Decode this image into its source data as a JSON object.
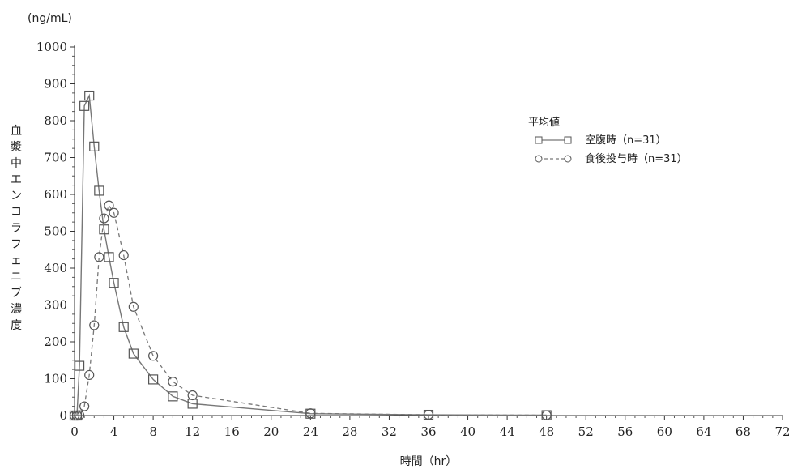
{
  "chart_data": {
    "type": "line",
    "unit_label": "(ng/mL)",
    "ylabel": "血漿中エンコラフェニブ濃度",
    "xlabel": "時間（hr）",
    "xlim": [
      0,
      72
    ],
    "ylim": [
      0,
      1000
    ],
    "xticks": [
      0,
      4,
      8,
      12,
      16,
      20,
      24,
      28,
      32,
      36,
      40,
      44,
      48,
      52,
      56,
      60,
      64,
      68,
      72
    ],
    "yticks": [
      0,
      100,
      200,
      300,
      400,
      500,
      600,
      700,
      800,
      900,
      1000
    ],
    "legend": {
      "title": "平均値",
      "position": "right"
    },
    "series": [
      {
        "name": "空腹時（n=31）",
        "marker": "square",
        "line": "solid",
        "color": "#555555",
        "x": [
          0,
          0.25,
          0.5,
          1,
          1.5,
          2,
          2.5,
          3,
          3.5,
          4,
          5,
          6,
          8,
          10,
          12,
          24,
          36,
          48
        ],
        "y": [
          0,
          0,
          135,
          840,
          868,
          730,
          610,
          505,
          430,
          360,
          240,
          168,
          98,
          52,
          32,
          5,
          2,
          1
        ]
      },
      {
        "name": "食後投与時（n=31）",
        "marker": "circle",
        "line": "dashed",
        "color": "#555555",
        "x": [
          0,
          0.25,
          0.5,
          1,
          1.5,
          2,
          2.5,
          3,
          3.5,
          4,
          5,
          6,
          8,
          10,
          12,
          24,
          36,
          48
        ],
        "y": [
          0,
          0,
          1,
          25,
          110,
          245,
          430,
          535,
          570,
          550,
          435,
          295,
          162,
          92,
          55,
          6,
          2,
          1
        ]
      }
    ]
  }
}
